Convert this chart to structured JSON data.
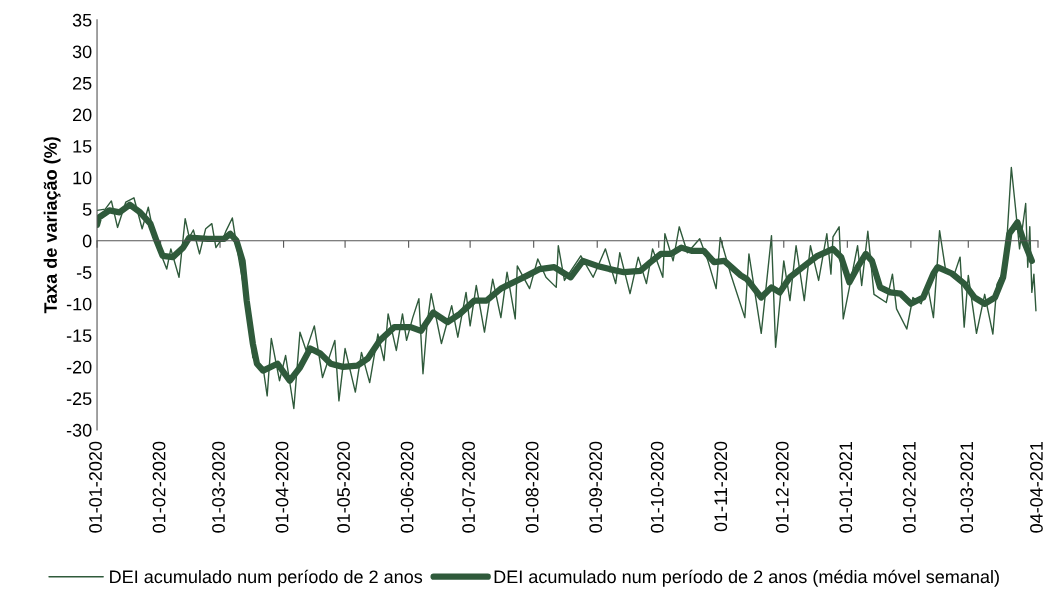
{
  "chart_data": {
    "type": "line",
    "ylabel": "Taxa de variação (%)",
    "legend": "bottom",
    "marker": "none",
    "line_style": "solid",
    "ylim": [
      -30,
      35
    ],
    "yticks": [
      -30,
      -25,
      -20,
      -15,
      -10,
      -5,
      0,
      5,
      10,
      15,
      20,
      25,
      30,
      35
    ],
    "xlim": [
      "2020-01-01",
      "2021-04-04"
    ],
    "xticks": [
      {
        "value": "2020-01-01",
        "label": "01-01-2020"
      },
      {
        "value": "2020-02-01",
        "label": "01-02-2020"
      },
      {
        "value": "2020-03-01",
        "label": "01-03-2020"
      },
      {
        "value": "2020-04-01",
        "label": "01-04-2020"
      },
      {
        "value": "2020-05-01",
        "label": "01-05-2020"
      },
      {
        "value": "2020-06-01",
        "label": "01-06-2020"
      },
      {
        "value": "2020-07-01",
        "label": "01-07-2020"
      },
      {
        "value": "2020-08-01",
        "label": "01-08-2020"
      },
      {
        "value": "2020-09-01",
        "label": "01-09-2020"
      },
      {
        "value": "2020-10-01",
        "label": "01-10-2020"
      },
      {
        "value": "2020-11-01",
        "label": "01-11-2020"
      },
      {
        "value": "2020-12-01",
        "label": "01-12-2020"
      },
      {
        "value": "2021-01-01",
        "label": "01-01-2021"
      },
      {
        "value": "2021-02-01",
        "label": "01-02-2021"
      },
      {
        "value": "2021-03-01",
        "label": "01-03-2021"
      },
      {
        "value": "2021-04-04",
        "label": "04-04-2021"
      }
    ],
    "series": [
      {
        "name": "DEI acumulado num período de 2 anos",
        "color": "#2f5a3b",
        "x": [
          "2020-01-01",
          "2020-01-05",
          "2020-01-08",
          "2020-01-11",
          "2020-01-15",
          "2020-01-19",
          "2020-01-23",
          "2020-01-26",
          "2020-01-29",
          "2020-02-04",
          "2020-02-06",
          "2020-02-10",
          "2020-02-13",
          "2020-02-15",
          "2020-02-17",
          "2020-02-20",
          "2020-02-23",
          "2020-02-26",
          "2020-02-28",
          "2020-03-03",
          "2020-03-04",
          "2020-03-07",
          "2020-03-10",
          "2020-03-14",
          "2020-03-17",
          "2020-03-22",
          "2020-03-24",
          "2020-03-26",
          "2020-03-30",
          "2020-04-02",
          "2020-04-06",
          "2020-04-09",
          "2020-04-12",
          "2020-04-16",
          "2020-04-20",
          "2020-04-26",
          "2020-04-28",
          "2020-05-01",
          "2020-05-06",
          "2020-05-09",
          "2020-05-13",
          "2020-05-17",
          "2020-05-20",
          "2020-05-22",
          "2020-05-26",
          "2020-05-29",
          "2020-05-31",
          "2020-06-03",
          "2020-06-06",
          "2020-06-08",
          "2020-06-10",
          "2020-06-12",
          "2020-06-17",
          "2020-06-22",
          "2020-06-25",
          "2020-06-29",
          "2020-07-01",
          "2020-07-04",
          "2020-07-08",
          "2020-07-12",
          "2020-07-16",
          "2020-07-19",
          "2020-07-23",
          "2020-07-24",
          "2020-07-30",
          "2020-08-03",
          "2020-08-07",
          "2020-08-12",
          "2020-08-13",
          "2020-08-16",
          "2020-08-24",
          "2020-08-30",
          "2020-09-05",
          "2020-09-10",
          "2020-09-12",
          "2020-09-17",
          "2020-09-21",
          "2020-09-25",
          "2020-09-28",
          "2020-10-03",
          "2020-10-04",
          "2020-10-08",
          "2020-10-11",
          "2020-10-15",
          "2020-10-21",
          "2020-10-25",
          "2020-10-29",
          "2020-10-31",
          "2020-11-05",
          "2020-11-12",
          "2020-11-14",
          "2020-11-20",
          "2020-11-25",
          "2020-11-27",
          "2020-12-01",
          "2020-12-04",
          "2020-12-07",
          "2020-12-11",
          "2020-12-14",
          "2020-12-18",
          "2020-12-22",
          "2020-12-24",
          "2020-12-25",
          "2020-12-28",
          "2020-12-30",
          "2021-01-06",
          "2021-01-08",
          "2021-01-11",
          "2021-01-14",
          "2021-01-20",
          "2021-01-23",
          "2021-01-25",
          "2021-01-30",
          "2021-02-02",
          "2021-02-06",
          "2021-02-09",
          "2021-02-12",
          "2021-02-15",
          "2021-02-18",
          "2021-02-22",
          "2021-02-25",
          "2021-02-27",
          "2021-03-01",
          "2021-03-05",
          "2021-03-09",
          "2021-03-13",
          "2021-03-15",
          "2021-03-19",
          "2021-03-22",
          "2021-03-24",
          "2021-03-26",
          "2021-03-29",
          "2021-03-30",
          "2021-03-31",
          "2021-04-01",
          "2021-04-02",
          "2021-04-03"
        ],
        "values": [
          4.8,
          5.0,
          6.3,
          2.1,
          6.1,
          6.8,
          1.9,
          5.3,
          0.5,
          -4.5,
          -1.3,
          -5.8,
          3.5,
          0.5,
          1.7,
          -2.1,
          1.9,
          2.7,
          -1.1,
          0.8,
          1.6,
          3.6,
          -2.6,
          -10,
          -18.5,
          -20.1,
          -24.6,
          -15.5,
          -22.2,
          -18.2,
          -26.6,
          -14.5,
          -17.4,
          -13.5,
          -21.7,
          -15.8,
          -25.4,
          -17.1,
          -24.0,
          -17.7,
          -22.5,
          -14.8,
          -19.0,
          -11.6,
          -17.4,
          -11.6,
          -15.8,
          -12.2,
          -9.2,
          -21.1,
          -13.2,
          -8.4,
          -16.3,
          -10.3,
          -15.3,
          -8.2,
          -13.5,
          -7.1,
          -14.5,
          -6.1,
          -12.2,
          -5.0,
          -12.4,
          -4.0,
          -7.6,
          -2.9,
          -5.8,
          -7.4,
          -0.8,
          -6.3,
          -2.4,
          -5.8,
          -1.3,
          -6.8,
          -1.9,
          -8.4,
          -2.6,
          -6.8,
          -1.3,
          -5.8,
          1.1,
          -3.2,
          2.2,
          -1.9,
          0.3,
          -3.2,
          -7.6,
          0.5,
          -5.2,
          -12.2,
          -2.1,
          -14.7,
          0.8,
          -16.9,
          -3.2,
          -9.5,
          -0.8,
          -9.5,
          -0.8,
          -6.3,
          1.1,
          -5.3,
          0.6,
          2.2,
          -12.4,
          -0.8,
          -7.1,
          1.5,
          -8.5,
          -9.8,
          -5.3,
          -10.8,
          -14.0,
          -9.0,
          -10.0,
          -6.9,
          -12.2,
          1.6,
          -4.8,
          -5.5,
          -2.6,
          -13.7,
          -5.5,
          -14.7,
          -8.5,
          -14.8,
          -6.9,
          -4.2,
          11.6,
          5.3,
          -1.3,
          5.9,
          -4.2,
          2.2,
          -8.2,
          -5.3,
          -11.1
        ]
      },
      {
        "name": "DEI acumulado num período de 2 anos (média móvel semanal)",
        "color": "#2f5a3b",
        "x": [
          "2020-01-01",
          "2020-01-02",
          "2020-01-07",
          "2020-01-12",
          "2020-01-17",
          "2020-01-22",
          "2020-01-27",
          "2020-01-30",
          "2020-02-02",
          "2020-02-07",
          "2020-02-12",
          "2020-02-15",
          "2020-02-24",
          "2020-03-03",
          "2020-03-06",
          "2020-03-09",
          "2020-03-12",
          "2020-03-14",
          "2020-03-17",
          "2020-03-19",
          "2020-03-22",
          "2020-03-29",
          "2020-04-04",
          "2020-04-09",
          "2020-04-14",
          "2020-04-19",
          "2020-04-24",
          "2020-04-30",
          "2020-05-07",
          "2020-05-12",
          "2020-05-18",
          "2020-05-25",
          "2020-06-02",
          "2020-06-07",
          "2020-06-13",
          "2020-06-20",
          "2020-06-26",
          "2020-07-03",
          "2020-07-09",
          "2020-07-16",
          "2020-07-24",
          "2020-07-29",
          "2020-08-04",
          "2020-08-11",
          "2020-08-19",
          "2020-08-25",
          "2020-09-01",
          "2020-09-07",
          "2020-09-14",
          "2020-09-22",
          "2020-09-27",
          "2020-10-02",
          "2020-10-07",
          "2020-10-12",
          "2020-10-17",
          "2020-10-23",
          "2020-10-28",
          "2020-11-02",
          "2020-11-10",
          "2020-11-13",
          "2020-11-20",
          "2020-11-25",
          "2020-11-29",
          "2020-12-04",
          "2020-12-11",
          "2020-12-17",
          "2020-12-25",
          "2020-12-29",
          "2021-01-02",
          "2021-01-06",
          "2021-01-10",
          "2021-01-13",
          "2021-01-17",
          "2021-01-22",
          "2021-01-27",
          "2021-02-01",
          "2021-02-07",
          "2021-02-12",
          "2021-02-14",
          "2021-02-21",
          "2021-02-27",
          "2021-03-04",
          "2021-03-09",
          "2021-03-14",
          "2021-03-18",
          "2021-03-21",
          "2021-03-25",
          "2021-03-28",
          "2021-04-01"
        ],
        "values": [
          2.5,
          3.7,
          4.8,
          4.5,
          5.7,
          4.5,
          2.7,
          0,
          -2.4,
          -2.6,
          -1.1,
          0.5,
          0.3,
          0.3,
          1.1,
          0,
          -3.2,
          -9.5,
          -16.3,
          -19.5,
          -20.6,
          -19.5,
          -22.2,
          -20.1,
          -17.1,
          -17.9,
          -19.5,
          -20.0,
          -19.8,
          -18.7,
          -15.8,
          -13.7,
          -13.7,
          -14.3,
          -11.4,
          -12.9,
          -11.6,
          -9.5,
          -9.5,
          -7.6,
          -6.3,
          -5.5,
          -4.5,
          -4.2,
          -5.8,
          -3.2,
          -4.0,
          -4.5,
          -5.0,
          -4.8,
          -3.4,
          -2.1,
          -2.1,
          -1.1,
          -1.6,
          -1.6,
          -3.4,
          -3.2,
          -5.5,
          -6.1,
          -9.0,
          -7.4,
          -8.2,
          -5.8,
          -4.0,
          -2.5,
          -1.3,
          -2.6,
          -6.6,
          -4.2,
          -2.1,
          -3.2,
          -7.4,
          -8.2,
          -8.4,
          -10.0,
          -9.0,
          -5.2,
          -4.2,
          -5.2,
          -6.8,
          -9.0,
          -10.0,
          -9.0,
          -5.8,
          1.1,
          2.9,
          0,
          -3.2
        ]
      }
    ]
  }
}
